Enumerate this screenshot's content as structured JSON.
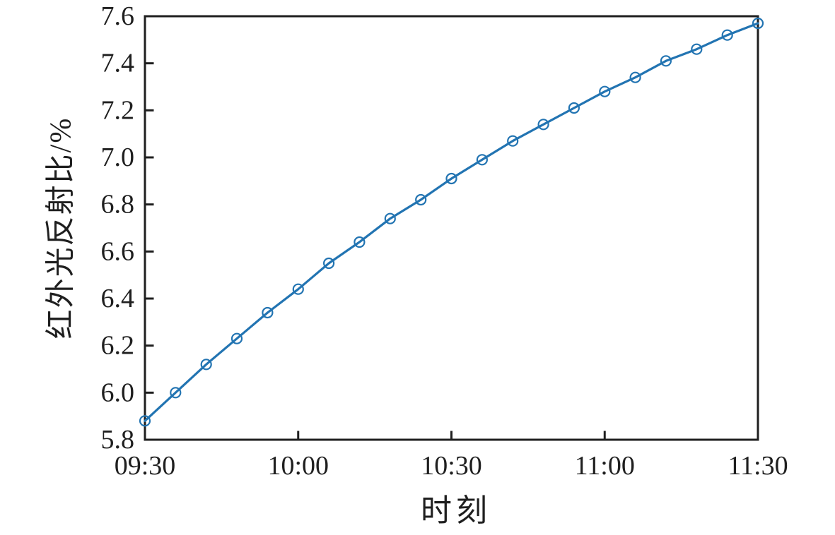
{
  "figure": {
    "background": "#ffffff"
  },
  "chart_data": {
    "type": "line",
    "title": "",
    "xlabel": "时刻",
    "ylabel": "红外光反射比/%",
    "x_tick_labels": [
      "09:30",
      "10:00",
      "10:30",
      "11:00",
      "11:30"
    ],
    "y_tick_labels": [
      "5.8",
      "6.0",
      "6.2",
      "6.4",
      "6.6",
      "6.8",
      "7.0",
      "7.2",
      "7.4",
      "7.6"
    ],
    "xlim": [
      "09:30",
      "11:30"
    ],
    "ylim": [
      5.8,
      7.6
    ],
    "grid": false,
    "legend": "none",
    "tick_direction": "in",
    "axis_color": "#1f1f1f",
    "series": [
      {
        "name": "红外光反射比",
        "color": "#2274b2",
        "marker": "open-circle",
        "x": [
          "09:30",
          "09:36",
          "09:42",
          "09:48",
          "09:54",
          "10:00",
          "10:06",
          "10:12",
          "10:18",
          "10:24",
          "10:30",
          "10:36",
          "10:42",
          "10:48",
          "10:54",
          "11:00",
          "11:06",
          "11:12",
          "11:18",
          "11:24",
          "11:30"
        ],
        "values": [
          5.88,
          6.0,
          6.12,
          6.23,
          6.34,
          6.44,
          6.55,
          6.64,
          6.74,
          6.82,
          6.91,
          6.99,
          7.07,
          7.14,
          7.21,
          7.28,
          7.34,
          7.41,
          7.46,
          7.52,
          7.57
        ]
      }
    ]
  }
}
